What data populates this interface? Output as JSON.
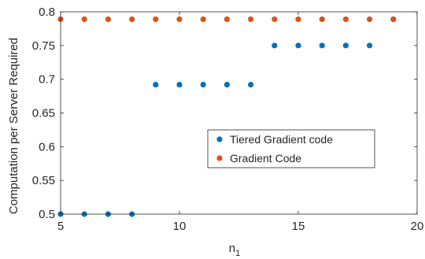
{
  "chart_data": {
    "type": "scatter",
    "title": "",
    "xlabel": "n",
    "xlabel_subscript": "1",
    "ylabel": "Computation per Server Required",
    "xlim": [
      5,
      20
    ],
    "ylim": [
      0.5,
      0.8
    ],
    "xticks": [
      5,
      10,
      15,
      20
    ],
    "yticks": [
      0.5,
      0.55,
      0.6,
      0.65,
      0.7,
      0.75,
      0.8
    ],
    "xtick_labels": [
      "5",
      "10",
      "15",
      "20"
    ],
    "ytick_labels": [
      "0.5",
      "0.55",
      "0.6",
      "0.65",
      "0.7",
      "0.75",
      "0.8"
    ],
    "grid": false,
    "legend_position": "center-right",
    "series": [
      {
        "name": "Tiered Gradient code",
        "color": "#0072BD",
        "x": [
          5,
          6,
          7,
          8,
          9,
          10,
          11,
          12,
          13,
          14,
          15,
          16,
          17,
          18,
          19
        ],
        "y": [
          0.5,
          0.5,
          0.5,
          0.5,
          0.692,
          0.692,
          0.692,
          0.692,
          0.692,
          0.75,
          0.75,
          0.75,
          0.75,
          0.75,
          0.789
        ]
      },
      {
        "name": "Gradient Code",
        "color": "#D95319",
        "x": [
          5,
          6,
          7,
          8,
          9,
          10,
          11,
          12,
          13,
          14,
          15,
          16,
          17,
          18,
          19
        ],
        "y": [
          0.789,
          0.789,
          0.789,
          0.789,
          0.789,
          0.789,
          0.789,
          0.789,
          0.789,
          0.789,
          0.789,
          0.789,
          0.789,
          0.789,
          0.789
        ]
      }
    ]
  }
}
